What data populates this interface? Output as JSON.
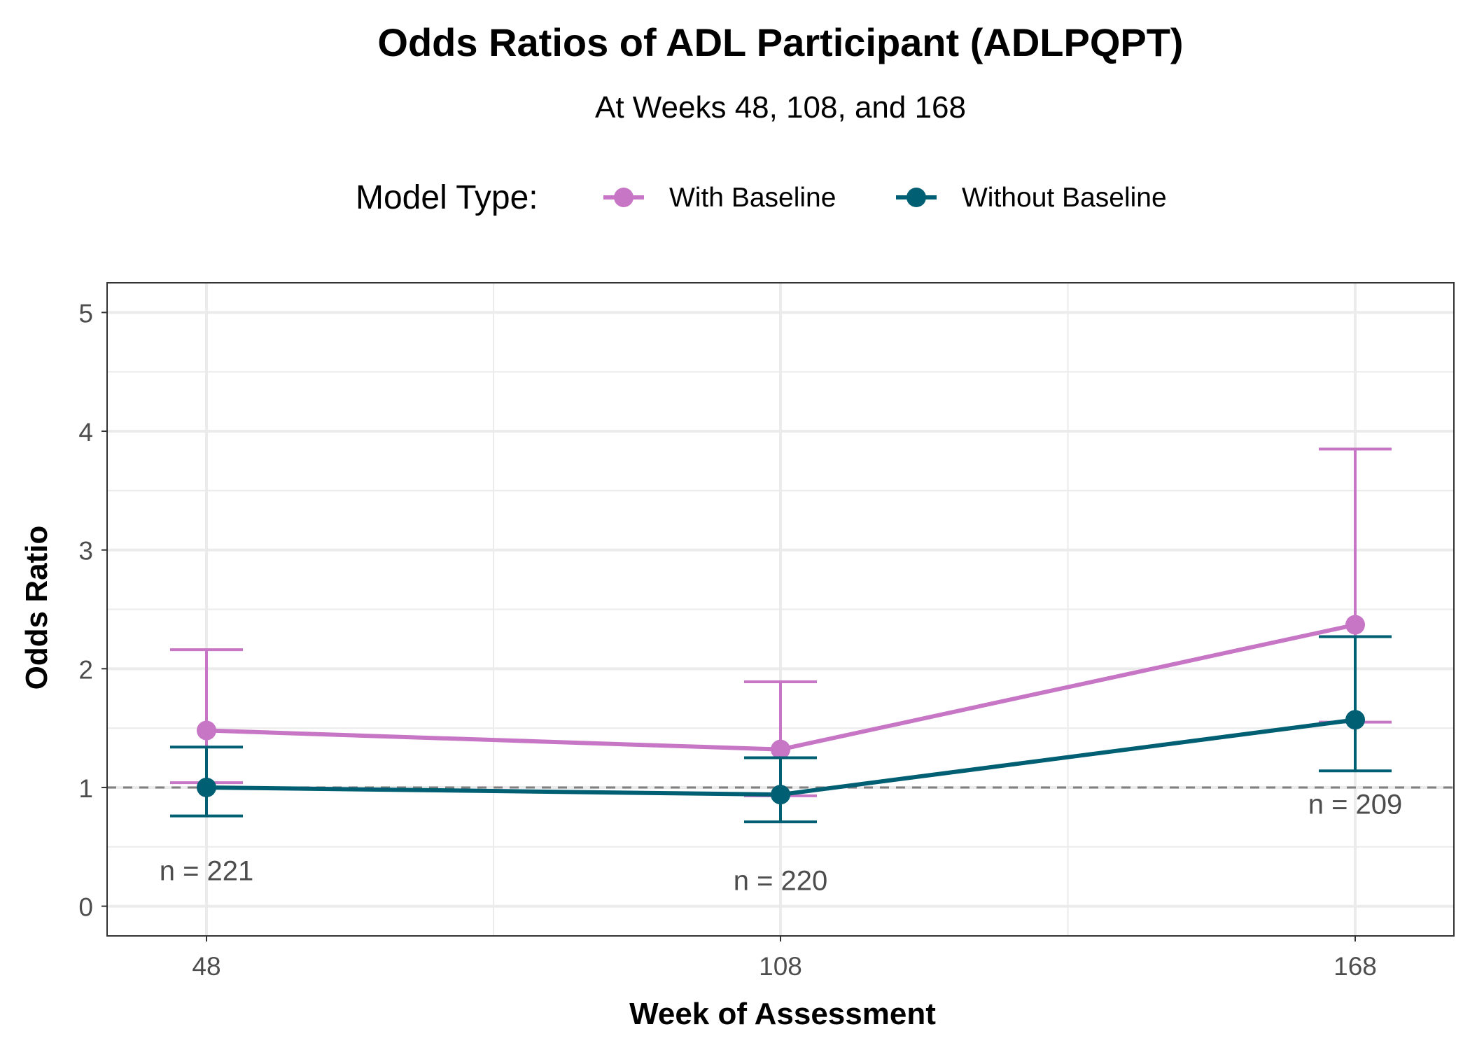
{
  "chart_data": {
    "type": "line",
    "title": "Odds Ratios of ADL Participant (ADLPQPT)",
    "subtitle": "At Weeks 48, 108, and 168",
    "xlabel": "Week of Assessment",
    "ylabel": "Odds Ratio",
    "categories": [
      "48",
      "108",
      "168"
    ],
    "ylim": [
      -0.25,
      5.25
    ],
    "yticks": [
      "0",
      "1",
      "2",
      "3",
      "4",
      "5"
    ],
    "grid": true,
    "reference_line": 1,
    "legend": {
      "title": "Model Type:",
      "placement": "top"
    },
    "series": [
      {
        "name": "With Baseline",
        "color": "#C776C6",
        "values": [
          1.48,
          1.32,
          2.37
        ],
        "ci_lower": [
          1.04,
          0.93,
          1.55
        ],
        "ci_upper": [
          2.16,
          1.89,
          3.85
        ]
      },
      {
        "name": "Without Baseline",
        "color": "#005F73",
        "values": [
          1.0,
          0.94,
          1.57
        ],
        "ci_lower": [
          0.76,
          0.71,
          1.14
        ],
        "ci_upper": [
          1.34,
          1.25,
          2.27
        ]
      }
    ],
    "annotations": [
      {
        "x": "48",
        "y": 0.3,
        "text": "n = 221"
      },
      {
        "x": "108",
        "y": 0.22,
        "text": "n = 220"
      },
      {
        "x": "168",
        "y": 0.86,
        "text": "n = 209"
      }
    ]
  }
}
